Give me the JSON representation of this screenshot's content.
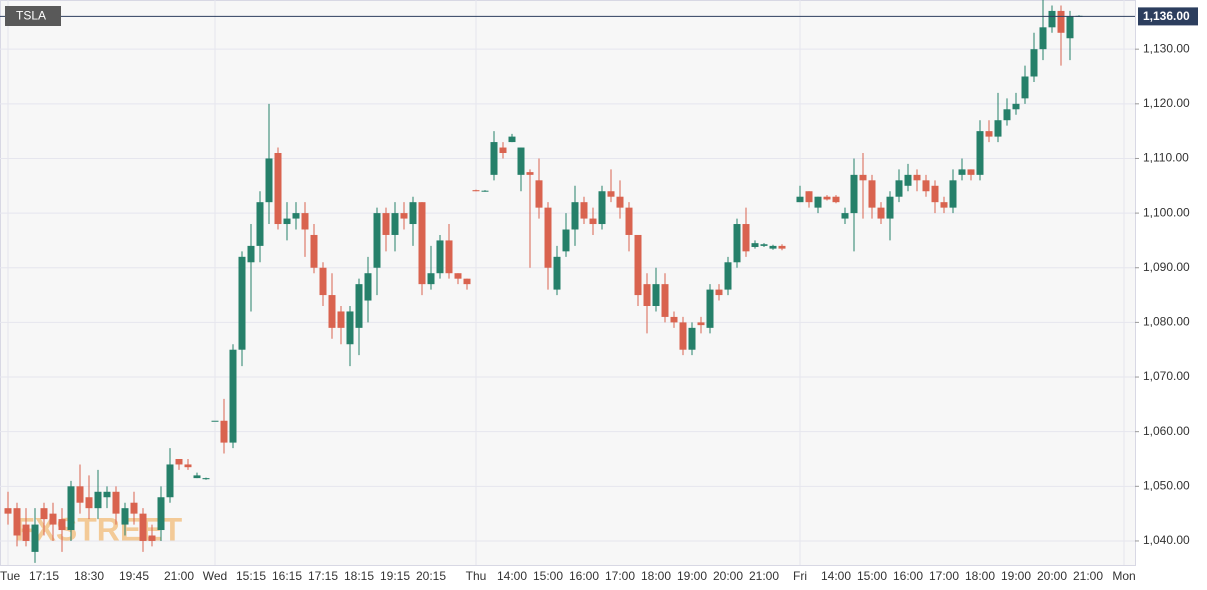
{
  "chart_data": {
    "type": "candlestick",
    "title": "TSLA",
    "watermark": "FXSTREET",
    "last_price": {
      "value": 1136,
      "label": "1,136.00"
    },
    "up_color": "#26806a",
    "down_color": "#d9634f",
    "grid": true,
    "ylim": [
      1035.6,
      1139
    ],
    "yticks": [
      {
        "value": 1040,
        "label": "1,040.00"
      },
      {
        "value": 1050,
        "label": "1,050.00"
      },
      {
        "value": 1060,
        "label": "1,060.00"
      },
      {
        "value": 1070,
        "label": "1,070.00"
      },
      {
        "value": 1080,
        "label": "1,080.00"
      },
      {
        "value": 1090,
        "label": "1,090.00"
      },
      {
        "value": 1100,
        "label": "1,100.00"
      },
      {
        "value": 1110,
        "label": "1,110.00"
      },
      {
        "value": 1120,
        "label": "1,120.00"
      },
      {
        "value": 1130,
        "label": "1,130.00"
      }
    ],
    "categories": [
      "Tue",
      null,
      null,
      null,
      "17:15",
      null,
      null,
      null,
      null,
      "18:30",
      null,
      null,
      null,
      null,
      "19:45",
      null,
      null,
      null,
      null,
      "21:00",
      null,
      null,
      null,
      "Wed",
      null,
      null,
      null,
      "15:15",
      null,
      null,
      null,
      "16:15",
      null,
      null,
      null,
      "17:15",
      null,
      null,
      null,
      "18:15",
      null,
      null,
      null,
      "19:15",
      null,
      null,
      null,
      "20:15",
      null,
      null,
      null,
      null,
      "Thu",
      null,
      null,
      null,
      "14:00",
      null,
      null,
      null,
      "15:00",
      null,
      null,
      null,
      "16:00",
      null,
      null,
      null,
      "17:00",
      null,
      null,
      null,
      "18:00",
      null,
      null,
      null,
      "19:00",
      null,
      null,
      null,
      "20:00",
      null,
      null,
      null,
      "21:00",
      null,
      null,
      null,
      "Fri",
      null,
      null,
      null,
      "14:00",
      null,
      null,
      null,
      "15:00",
      null,
      null,
      null,
      "16:00",
      null,
      null,
      null,
      "17:00",
      null,
      null,
      null,
      "18:00",
      null,
      null,
      null,
      "19:00",
      null,
      null,
      null,
      "20:00",
      null,
      null,
      null,
      "21:00",
      null,
      null,
      null,
      "Mon"
    ],
    "open": [
      1046,
      1046,
      1043,
      1038,
      1046,
      1045,
      1044,
      1042,
      1050,
      1048,
      1046,
      1048,
      1049,
      1043,
      1047,
      1045,
      1041,
      1042,
      1048,
      1055,
      1054,
      1051.5,
      1051.3,
      1062,
      1062,
      1058,
      1075,
      1091,
      1094,
      1102,
      1111,
      1098,
      1099,
      1100,
      1096,
      1090,
      1085,
      1082,
      1076,
      1079,
      1084,
      1090,
      1100,
      1096,
      1100,
      1098,
      1102,
      1087,
      1089,
      1095,
      1089,
      1088,
      1104.2,
      1104,
      1107,
      1112,
      1113,
      1107,
      1107.5,
      1106,
      1101,
      1086,
      1093,
      1097,
      1102,
      1099,
      1098,
      1104,
      1103,
      1101,
      1096,
      1087,
      1083,
      1087,
      1081,
      1080,
      1075,
      1080,
      1079,
      1086,
      1086,
      1091,
      1098,
      1093.8,
      1094,
      1093.5,
      1094,
      null,
      1102,
      1104,
      1101,
      1103,
      1103,
      1099,
      1100,
      1107,
      1106,
      1101,
      1099,
      1103,
      1105,
      1107,
      1106,
      1105,
      1102,
      1101,
      1107,
      1108,
      1107,
      1115,
      1114,
      1117,
      1119,
      1121,
      1125,
      1130,
      1134,
      1137,
      1132,
      1136,
      null,
      null,
      null,
      null,
      null
    ],
    "high": [
      1049,
      1047,
      1046,
      1046,
      1047,
      1047,
      1046,
      1051,
      1054,
      1052,
      1053,
      1050,
      1050,
      1047,
      1049,
      1046,
      1043,
      1050,
      1057,
      1055,
      1055,
      1052.5,
      1051.6,
      1062,
      1066,
      1076,
      1093,
      1098,
      1104,
      1120,
      1112,
      1102,
      1102,
      1102,
      1098,
      1091,
      1089,
      1083,
      1083,
      1088,
      1092,
      1101,
      1101,
      1102,
      1102,
      1103,
      1102,
      1094,
      1096,
      1098,
      1089,
      1088,
      1104.3,
      1104.2,
      1115,
      1113,
      1114.5,
      1112,
      1108,
      1110,
      1102,
      1094,
      1100,
      1105,
      1103,
      1101,
      1105,
      1108,
      1106,
      1102,
      1096,
      1089,
      1090,
      1089,
      1082,
      1081,
      1080,
      1081,
      1087,
      1087,
      1092,
      1099,
      1101,
      1095,
      1094.5,
      1094.2,
      1094.3,
      null,
      1105,
      1104,
      1103,
      1103.3,
      1103.3,
      1101,
      1110,
      1111,
      1107,
      1102,
      1104,
      1108,
      1109,
      1108,
      1107,
      1106,
      1103,
      1108,
      1110,
      1108,
      1117,
      1117,
      1122,
      1121,
      1122,
      1127,
      1133,
      1139,
      1138,
      1138,
      1137,
      1136.2,
      null,
      null,
      null,
      null,
      null
    ],
    "low": [
      1043,
      1039,
      1039,
      1036,
      1041,
      1040,
      1038,
      1040,
      1045,
      1044,
      1044,
      1046,
      1043,
      1041,
      1043,
      1038,
      1039,
      1040,
      1047,
      1053,
      1053,
      1051.5,
      1051.2,
      1062,
      1056,
      1057,
      1072,
      1082,
      1091,
      1098,
      1097,
      1095,
      1097,
      1092,
      1089,
      1083,
      1077,
      1076,
      1072,
      1074,
      1080,
      1085,
      1093,
      1093,
      1097,
      1094,
      1085,
      1086,
      1088,
      1088,
      1087,
      1086,
      1104,
      1103.9,
      1106,
      1110,
      1113,
      1104,
      1090,
      1099,
      1086,
      1085,
      1092,
      1094,
      1098,
      1096,
      1097,
      1102,
      1099,
      1093,
      1083,
      1078,
      1082,
      1080,
      1079,
      1074,
      1074,
      1078,
      1078,
      1084,
      1085,
      1090,
      1092,
      1093.5,
      1093.8,
      1093.3,
      1093.2,
      null,
      1102,
      1101,
      1100,
      1102.3,
      1101.8,
      1098,
      1093,
      1099,
      1099,
      1098,
      1095,
      1102,
      1104,
      1104,
      1103,
      1100,
      1100,
      1100,
      1106,
      1106,
      1106,
      1113,
      1113,
      1116,
      1118,
      1120,
      1124,
      1128,
      1133,
      1127,
      1128,
      1135.9,
      null,
      null,
      null,
      null,
      null
    ],
    "close": [
      1045,
      1041,
      1040,
      1043,
      1044,
      1043,
      1042,
      1050,
      1047,
      1046,
      1049,
      1049,
      1045,
      1046,
      1045,
      1040,
      1040,
      1048,
      1054,
      1054,
      1053.5,
      1052,
      1051.5,
      1062,
      1058,
      1075,
      1092,
      1094,
      1102,
      1110,
      1098,
      1099,
      1100,
      1097,
      1090,
      1085,
      1079,
      1079,
      1082,
      1087,
      1089,
      1100,
      1096,
      1100,
      1099,
      1102,
      1087,
      1089,
      1095,
      1089,
      1088,
      1087,
      1104,
      1104.1,
      1113,
      1111,
      1114,
      1112,
      1107,
      1101,
      1090,
      1092,
      1097,
      1102,
      1099,
      1098,
      1104,
      1103,
      1101,
      1096,
      1085,
      1083,
      1087,
      1081,
      1080,
      1075,
      1079,
      1079.5,
      1086,
      1085,
      1091,
      1098,
      1093,
      1094.5,
      1094.3,
      1094,
      1093.5,
      null,
      1103,
      1102,
      1103,
      1102.5,
      1102,
      1100,
      1107,
      1106,
      1101,
      1099,
      1103,
      1106,
      1107,
      1106,
      1104,
      1102,
      1101,
      1106,
      1108,
      1107,
      1115,
      1114,
      1117,
      1119,
      1120,
      1125,
      1130,
      1134,
      1137,
      1133,
      1136,
      1136.1,
      null,
      null,
      null,
      null,
      null
    ]
  }
}
